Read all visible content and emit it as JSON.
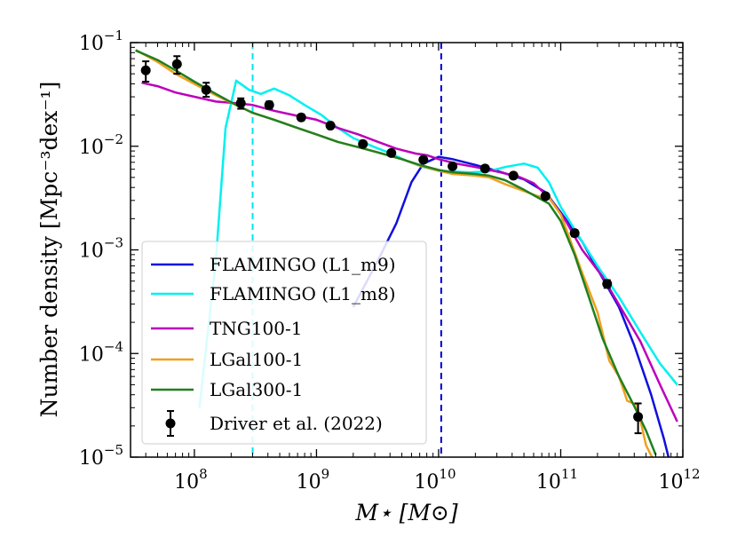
{
  "chart_data": {
    "type": "line",
    "xlabel": "M⋆ [M⊙]",
    "ylabel": "Number density [Mpc⁻³dex⁻¹]",
    "xscale": "log",
    "yscale": "log",
    "xlim": [
      30000000.0,
      1000000000000.0
    ],
    "ylim": [
      1e-05,
      0.1
    ],
    "x_ticks": [
      {
        "value": 100000000.0,
        "base": "10",
        "exp": "8"
      },
      {
        "value": 1000000000.0,
        "base": "10",
        "exp": "9"
      },
      {
        "value": 10000000000.0,
        "base": "10",
        "exp": "10"
      },
      {
        "value": 100000000000.0,
        "base": "10",
        "exp": "11"
      },
      {
        "value": 1000000000000.0,
        "base": "10",
        "exp": "12"
      }
    ],
    "y_ticks": [
      {
        "value": 1e-05,
        "base": "10",
        "exp": "−5"
      },
      {
        "value": 0.0001,
        "base": "10",
        "exp": "−4"
      },
      {
        "value": 0.001,
        "base": "10",
        "exp": "−3"
      },
      {
        "value": 0.01,
        "base": "10",
        "exp": "−2"
      },
      {
        "value": 0.1,
        "base": "10",
        "exp": "−1"
      }
    ],
    "vlines": [
      {
        "x": 300000000.0,
        "color": "#00e5ee",
        "style": "dashed"
      },
      {
        "x": 10500000000.0,
        "color": "#0000dd",
        "style": "dashed"
      }
    ],
    "legend_position": "lower-left",
    "series": [
      {
        "name": "FLAMINGO (L1_m9)",
        "color": "#1010dd",
        "x": [
          2000000000.0,
          3200000000.0,
          4500000000.0,
          6000000000.0,
          7500000000.0,
          10000000000.0,
          13000000000.0,
          20000000000.0,
          30000000000.0,
          50000000000.0,
          75000000000.0,
          100000000000.0,
          150000000000.0,
          200000000000.0,
          300000000000.0,
          400000000000.0,
          550000000000.0,
          700000000000.0,
          800000000000.0
        ],
        "y": [
          0.00028,
          0.0008,
          0.0018,
          0.0045,
          0.0068,
          0.0079,
          0.0075,
          0.0066,
          0.0058,
          0.0048,
          0.0036,
          0.0023,
          0.0012,
          0.00065,
          0.00028,
          0.00012,
          4e-05,
          1.5e-05,
          8e-06
        ]
      },
      {
        "name": "FLAMINGO (L1_m8)",
        "color": "#00f0f0",
        "x": [
          110000000.0,
          150000000.0,
          180000000.0,
          220000000.0,
          280000000.0,
          350000000.0,
          450000000.0,
          600000000.0,
          800000000.0,
          1100000000.0,
          1500000000.0,
          2000000000.0,
          3000000000.0,
          4000000000.0,
          5500000000.0,
          7500000000.0,
          10000000000.0,
          13000000000.0,
          18000000000.0,
          25000000000.0,
          35000000000.0,
          50000000000.0,
          65000000000.0,
          80000000000.0,
          100000000000.0,
          150000000000.0,
          200000000000.0,
          300000000000.0,
          450000000000.0,
          650000000000.0,
          900000000000.0
        ],
        "y": [
          3e-05,
          0.0008,
          0.015,
          0.043,
          0.035,
          0.032,
          0.036,
          0.031,
          0.025,
          0.02,
          0.015,
          0.012,
          0.0098,
          0.0086,
          0.0072,
          0.0063,
          0.0058,
          0.0057,
          0.0056,
          0.0057,
          0.0063,
          0.0068,
          0.0062,
          0.0045,
          0.0026,
          0.0012,
          0.0007,
          0.00035,
          0.00016,
          8e-05,
          5e-05
        ]
      },
      {
        "name": "TNG100-1",
        "color": "#bb00bb",
        "x": [
          37000000.0,
          50000000.0,
          70000000.0,
          100000000.0,
          150000000.0,
          220000000.0,
          300000000.0,
          450000000.0,
          650000000.0,
          1000000000.0,
          1500000000.0,
          2200000000.0,
          3200000000.0,
          4500000000.0,
          6500000000.0,
          8000000000.0,
          10000000000.0,
          14000000000.0,
          20000000000.0,
          30000000000.0,
          45000000000.0,
          60000000000.0,
          80000000000.0,
          110000000000.0,
          150000000000.0,
          220000000000.0,
          320000000000.0,
          450000000000.0,
          650000000000.0,
          900000000000.0
        ],
        "y": [
          0.041,
          0.038,
          0.033,
          0.03,
          0.027,
          0.026,
          0.025,
          0.022,
          0.02,
          0.018,
          0.015,
          0.013,
          0.011,
          0.0095,
          0.0085,
          0.0082,
          0.0075,
          0.0068,
          0.0063,
          0.0057,
          0.0051,
          0.0044,
          0.0032,
          0.0019,
          0.001,
          0.00055,
          0.00026,
          0.00013,
          5e-05,
          2.2e-05
        ]
      },
      {
        "name": "LGal100-1",
        "color": "#f0a020",
        "x": [
          33000000.0,
          50000000.0,
          70000000.0,
          100000000.0,
          150000000.0,
          220000000.0,
          300000000.0,
          450000000.0,
          700000000.0,
          1000000000.0,
          1500000000.0,
          2200000000.0,
          3200000000.0,
          5000000000.0,
          7000000000.0,
          10000000000.0,
          13000000000.0,
          20000000000.0,
          26000000000.0,
          35000000000.0,
          50000000000.0,
          65000000000.0,
          80000000000.0,
          100000000000.0,
          150000000000.0,
          200000000000.0,
          250000000000.0,
          300000000000.0,
          350000000000.0,
          420000000000.0,
          500000000000.0,
          600000000000.0
        ],
        "y": [
          0.085,
          0.065,
          0.05,
          0.04,
          0.031,
          0.025,
          0.021,
          0.018,
          0.015,
          0.013,
          0.011,
          0.0098,
          0.0087,
          0.0075,
          0.0065,
          0.0058,
          0.0054,
          0.0052,
          0.005,
          0.0043,
          0.0037,
          0.0033,
          0.0032,
          0.0022,
          0.0006,
          0.00025,
          8.5e-05,
          6e-05,
          3.5e-05,
          3.2e-05,
          1.3e-05,
          8.5e-06
        ]
      },
      {
        "name": "LGal300-1",
        "color": "#208020",
        "x": [
          33000000.0,
          50000000.0,
          70000000.0,
          100000000.0,
          150000000.0,
          220000000.0,
          300000000.0,
          450000000.0,
          700000000.0,
          1000000000.0,
          1500000000.0,
          2200000000.0,
          3200000000.0,
          5000000000.0,
          7000000000.0,
          10000000000.0,
          13000000000.0,
          20000000000.0,
          26000000000.0,
          35000000000.0,
          50000000000.0,
          65000000000.0,
          80000000000.0,
          100000000000.0,
          130000000000.0,
          170000000000.0,
          220000000000.0,
          300000000000.0,
          400000000000.0,
          500000000000.0,
          600000000000.0
        ],
        "y": [
          0.084,
          0.068,
          0.054,
          0.042,
          0.032,
          0.025,
          0.021,
          0.018,
          0.015,
          0.013,
          0.011,
          0.0098,
          0.0087,
          0.0075,
          0.0066,
          0.0059,
          0.0056,
          0.0054,
          0.0052,
          0.0047,
          0.0038,
          0.0032,
          0.0028,
          0.0019,
          0.0009,
          0.00035,
          0.00014,
          6e-05,
          3.1e-05,
          1.8e-05,
          1.05e-05
        ]
      }
    ],
    "observations": {
      "name": "Driver et al. (2022)",
      "color": "#000000",
      "x": [
        40000000.0,
        72000000.0,
        125000000.0,
        240000000.0,
        410000000.0,
        750000000.0,
        1300000000.0,
        2400000000.0,
        4100000000.0,
        7500000000.0,
        13000000000.0,
        24000000000.0,
        41000000000.0,
        75000000000.0,
        130000000000.0,
        240000000000.0,
        430000000000.0
      ],
      "y": [
        0.054,
        0.062,
        0.035,
        0.026,
        0.025,
        0.019,
        0.0158,
        0.0105,
        0.0086,
        0.0074,
        0.0064,
        0.0061,
        0.0052,
        0.0033,
        0.00145,
        0.00047,
        2.45e-05
      ],
      "err_lo": [
        0.012,
        0.012,
        0.005,
        0.003,
        0.002,
        0.0012,
        0.0008,
        0.0006,
        0.0005,
        0.0004,
        0.0003,
        0.0003,
        0.0003,
        0.0002,
        0.0001,
        4e-05,
        7.5e-06
      ],
      "err_hi": [
        0.012,
        0.012,
        0.006,
        0.003,
        0.002,
        0.0012,
        0.0008,
        0.0006,
        0.0005,
        0.0004,
        0.0003,
        0.0003,
        0.0003,
        0.0002,
        0.0001,
        4e-05,
        8.5e-06
      ]
    }
  }
}
